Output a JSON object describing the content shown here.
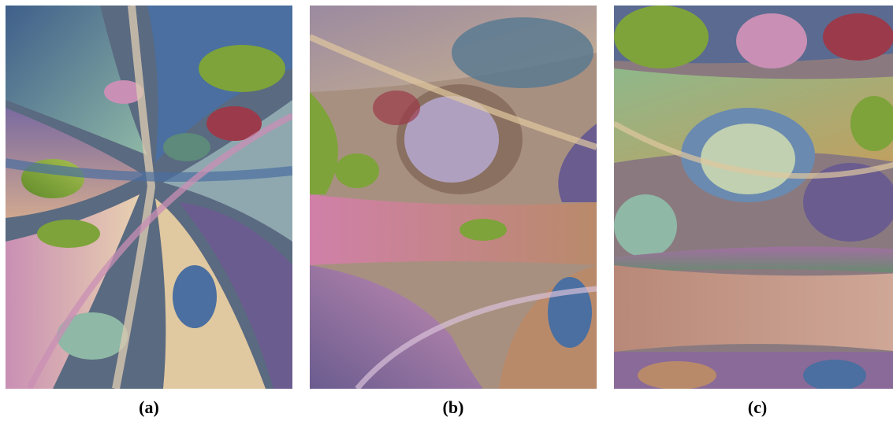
{
  "panels": [
    {
      "id": "a",
      "caption": "(a)"
    },
    {
      "id": "b",
      "caption": "(b)"
    },
    {
      "id": "c",
      "caption": "(c)"
    }
  ],
  "colors": {
    "palette": [
      "#4a6fa0",
      "#c98fb4",
      "#7ea33a",
      "#b98a6a",
      "#8fb8a6",
      "#9b3a4a",
      "#6a5c8f",
      "#e0c8a0",
      "#5d8a7a",
      "#a86090"
    ],
    "background": "#ffffff"
  }
}
